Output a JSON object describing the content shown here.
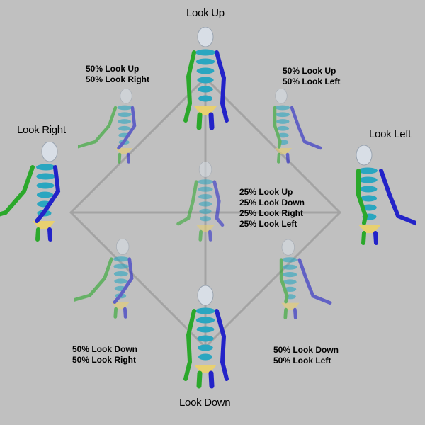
{
  "labels": {
    "look_up": "Look Up",
    "look_down": "Look Down",
    "look_left": "Look Left",
    "look_right": "Look Right",
    "up_right": [
      "50% Look Up",
      "50% Look Right"
    ],
    "up_left": [
      "50% Look Up",
      "50% Look Left"
    ],
    "down_right": [
      "50% Look Down",
      "50% Look Right"
    ],
    "down_left": [
      "50% Look Down",
      "50% Look Left"
    ],
    "center": [
      "25% Look Up",
      "25% Look Down",
      "25% Look Right",
      "25% Look Left"
    ]
  },
  "colors": {
    "background": "#c0c0c0",
    "line": "#a3a3a3",
    "left_limb": "#2ba82b",
    "right_limb": "#2323c8",
    "spine": "#2aa6c0",
    "head": "#d8dee6",
    "pelvis": "#e8d070"
  },
  "icons": {
    "pose": "skeleton-figure"
  }
}
